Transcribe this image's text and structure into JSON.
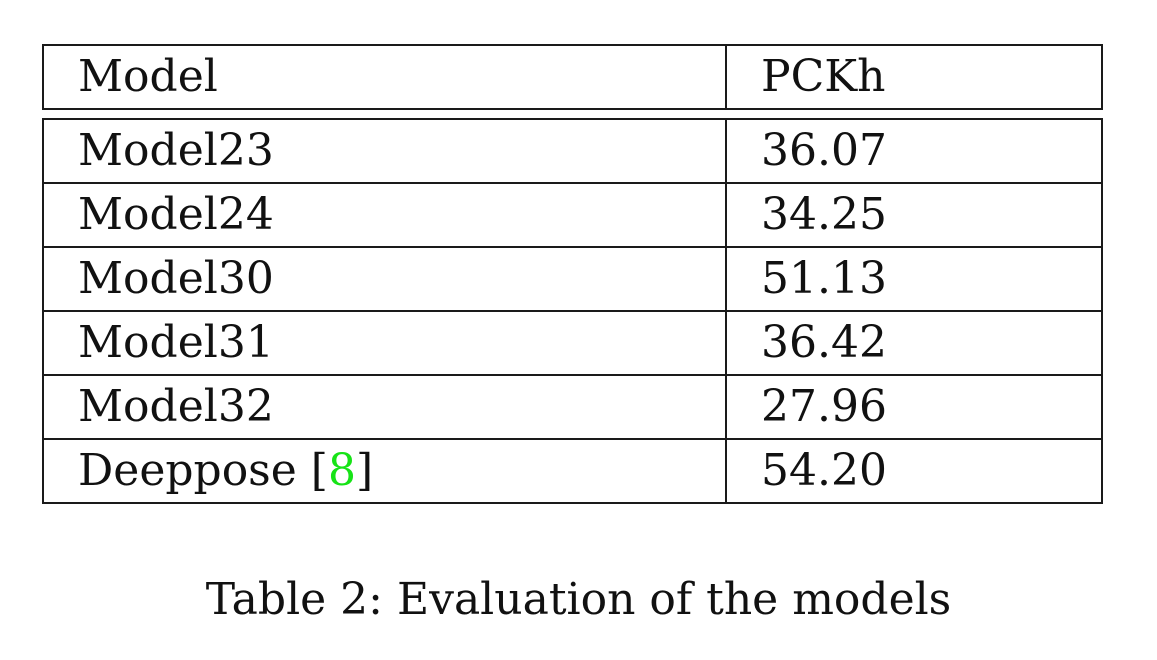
{
  "table": {
    "headers": [
      "Model",
      "PCKh"
    ],
    "rows": [
      {
        "model": "Model23",
        "pckh": "36.07"
      },
      {
        "model": "Model24",
        "pckh": "34.25"
      },
      {
        "model": "Model30",
        "pckh": "51.13"
      },
      {
        "model": "Model31",
        "pckh": "36.42"
      },
      {
        "model": "Model32",
        "pckh": "27.96"
      },
      {
        "model": "Deeppose",
        "cite": "8",
        "pckh": "54.20"
      }
    ]
  },
  "caption": "Table 2: Evaluation of the models",
  "colors": {
    "citation": "#17e317",
    "text": "#111111",
    "border": "#1a1a1a"
  }
}
